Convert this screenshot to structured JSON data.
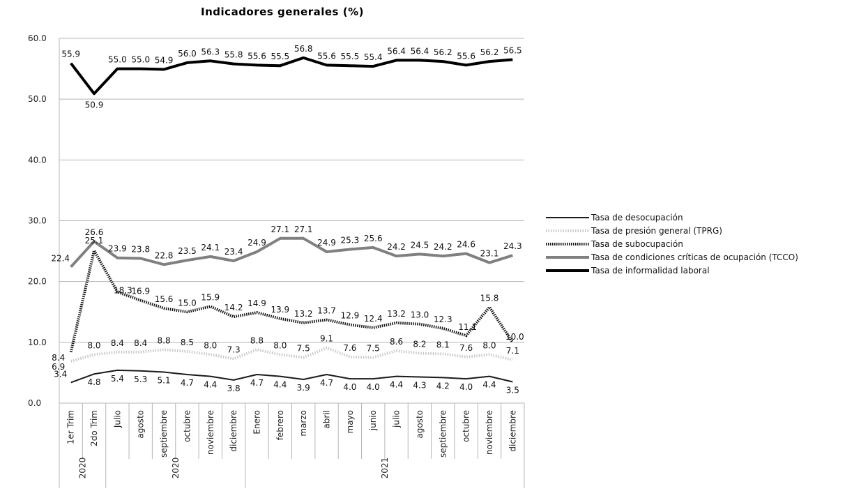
{
  "chart_data": {
    "type": "line",
    "title": "Indicadores generales (%)",
    "xlabel": "",
    "ylabel": "",
    "ylim": [
      0,
      60
    ],
    "yticks": [
      "0.0",
      "10.0",
      "20.0",
      "30.0",
      "40.0",
      "50.0",
      "60.0"
    ],
    "grid": true,
    "legend_position": "right",
    "categories": [
      "1er Trim",
      "2do Trim",
      "Julio",
      "agosto",
      "septiembre",
      "octubre",
      "noviembre",
      "diciembre",
      "Enero",
      "febrero",
      "marzo",
      "abril",
      "mayo",
      "junio",
      "julio",
      "agosto",
      "septiembre",
      "octubre",
      "noviembre",
      "diciembre"
    ],
    "year_groups": [
      {
        "label": "2020",
        "start": 0,
        "end": 1
      },
      {
        "label": "2020",
        "start": 2,
        "end": 7
      },
      {
        "label": "2021",
        "start": 8,
        "end": 19
      }
    ],
    "series": [
      {
        "name": "Tasa de desocupación",
        "color": "#1a1a1a",
        "style": "solid-thin",
        "values": [
          3.4,
          4.8,
          5.4,
          5.3,
          5.1,
          4.7,
          4.4,
          3.8,
          4.7,
          4.4,
          3.9,
          4.7,
          4.0,
          4.0,
          4.4,
          4.3,
          4.2,
          4.0,
          4.4,
          3.5
        ]
      },
      {
        "name": "Tasa de presión general (TPRG)",
        "color": "#c8c8c8",
        "style": "dotted-light",
        "values": [
          6.9,
          8.0,
          8.4,
          8.4,
          8.8,
          8.5,
          8.0,
          7.3,
          8.8,
          8.0,
          7.5,
          9.1,
          7.6,
          7.5,
          8.6,
          8.2,
          8.1,
          7.6,
          8.0,
          7.1
        ]
      },
      {
        "name": "Tasa de subocupación",
        "color": "#111111",
        "style": "dotted-heavy",
        "values": [
          8.4,
          25.1,
          18.3,
          16.9,
          15.6,
          15.0,
          15.9,
          14.2,
          14.9,
          13.9,
          13.2,
          13.7,
          12.9,
          12.4,
          13.2,
          13.0,
          12.3,
          11.1,
          15.8,
          10.0
        ]
      },
      {
        "name": "Tasa de condiciones críticas de ocupación (TCCO)",
        "color": "#808080",
        "style": "solid-thick",
        "values": [
          22.4,
          26.6,
          23.9,
          23.8,
          22.8,
          23.5,
          24.1,
          23.4,
          24.9,
          27.1,
          27.1,
          24.9,
          25.3,
          25.6,
          24.2,
          24.5,
          24.2,
          24.6,
          23.1,
          24.3
        ]
      },
      {
        "name": "Tasa de informalidad laboral",
        "color": "#000000",
        "style": "solid-heavy",
        "values": [
          55.9,
          50.9,
          55.0,
          55.0,
          54.9,
          56.0,
          56.3,
          55.8,
          55.6,
          55.5,
          56.8,
          55.6,
          55.5,
          55.4,
          56.4,
          56.4,
          56.2,
          55.6,
          56.2,
          56.5
        ]
      }
    ]
  }
}
